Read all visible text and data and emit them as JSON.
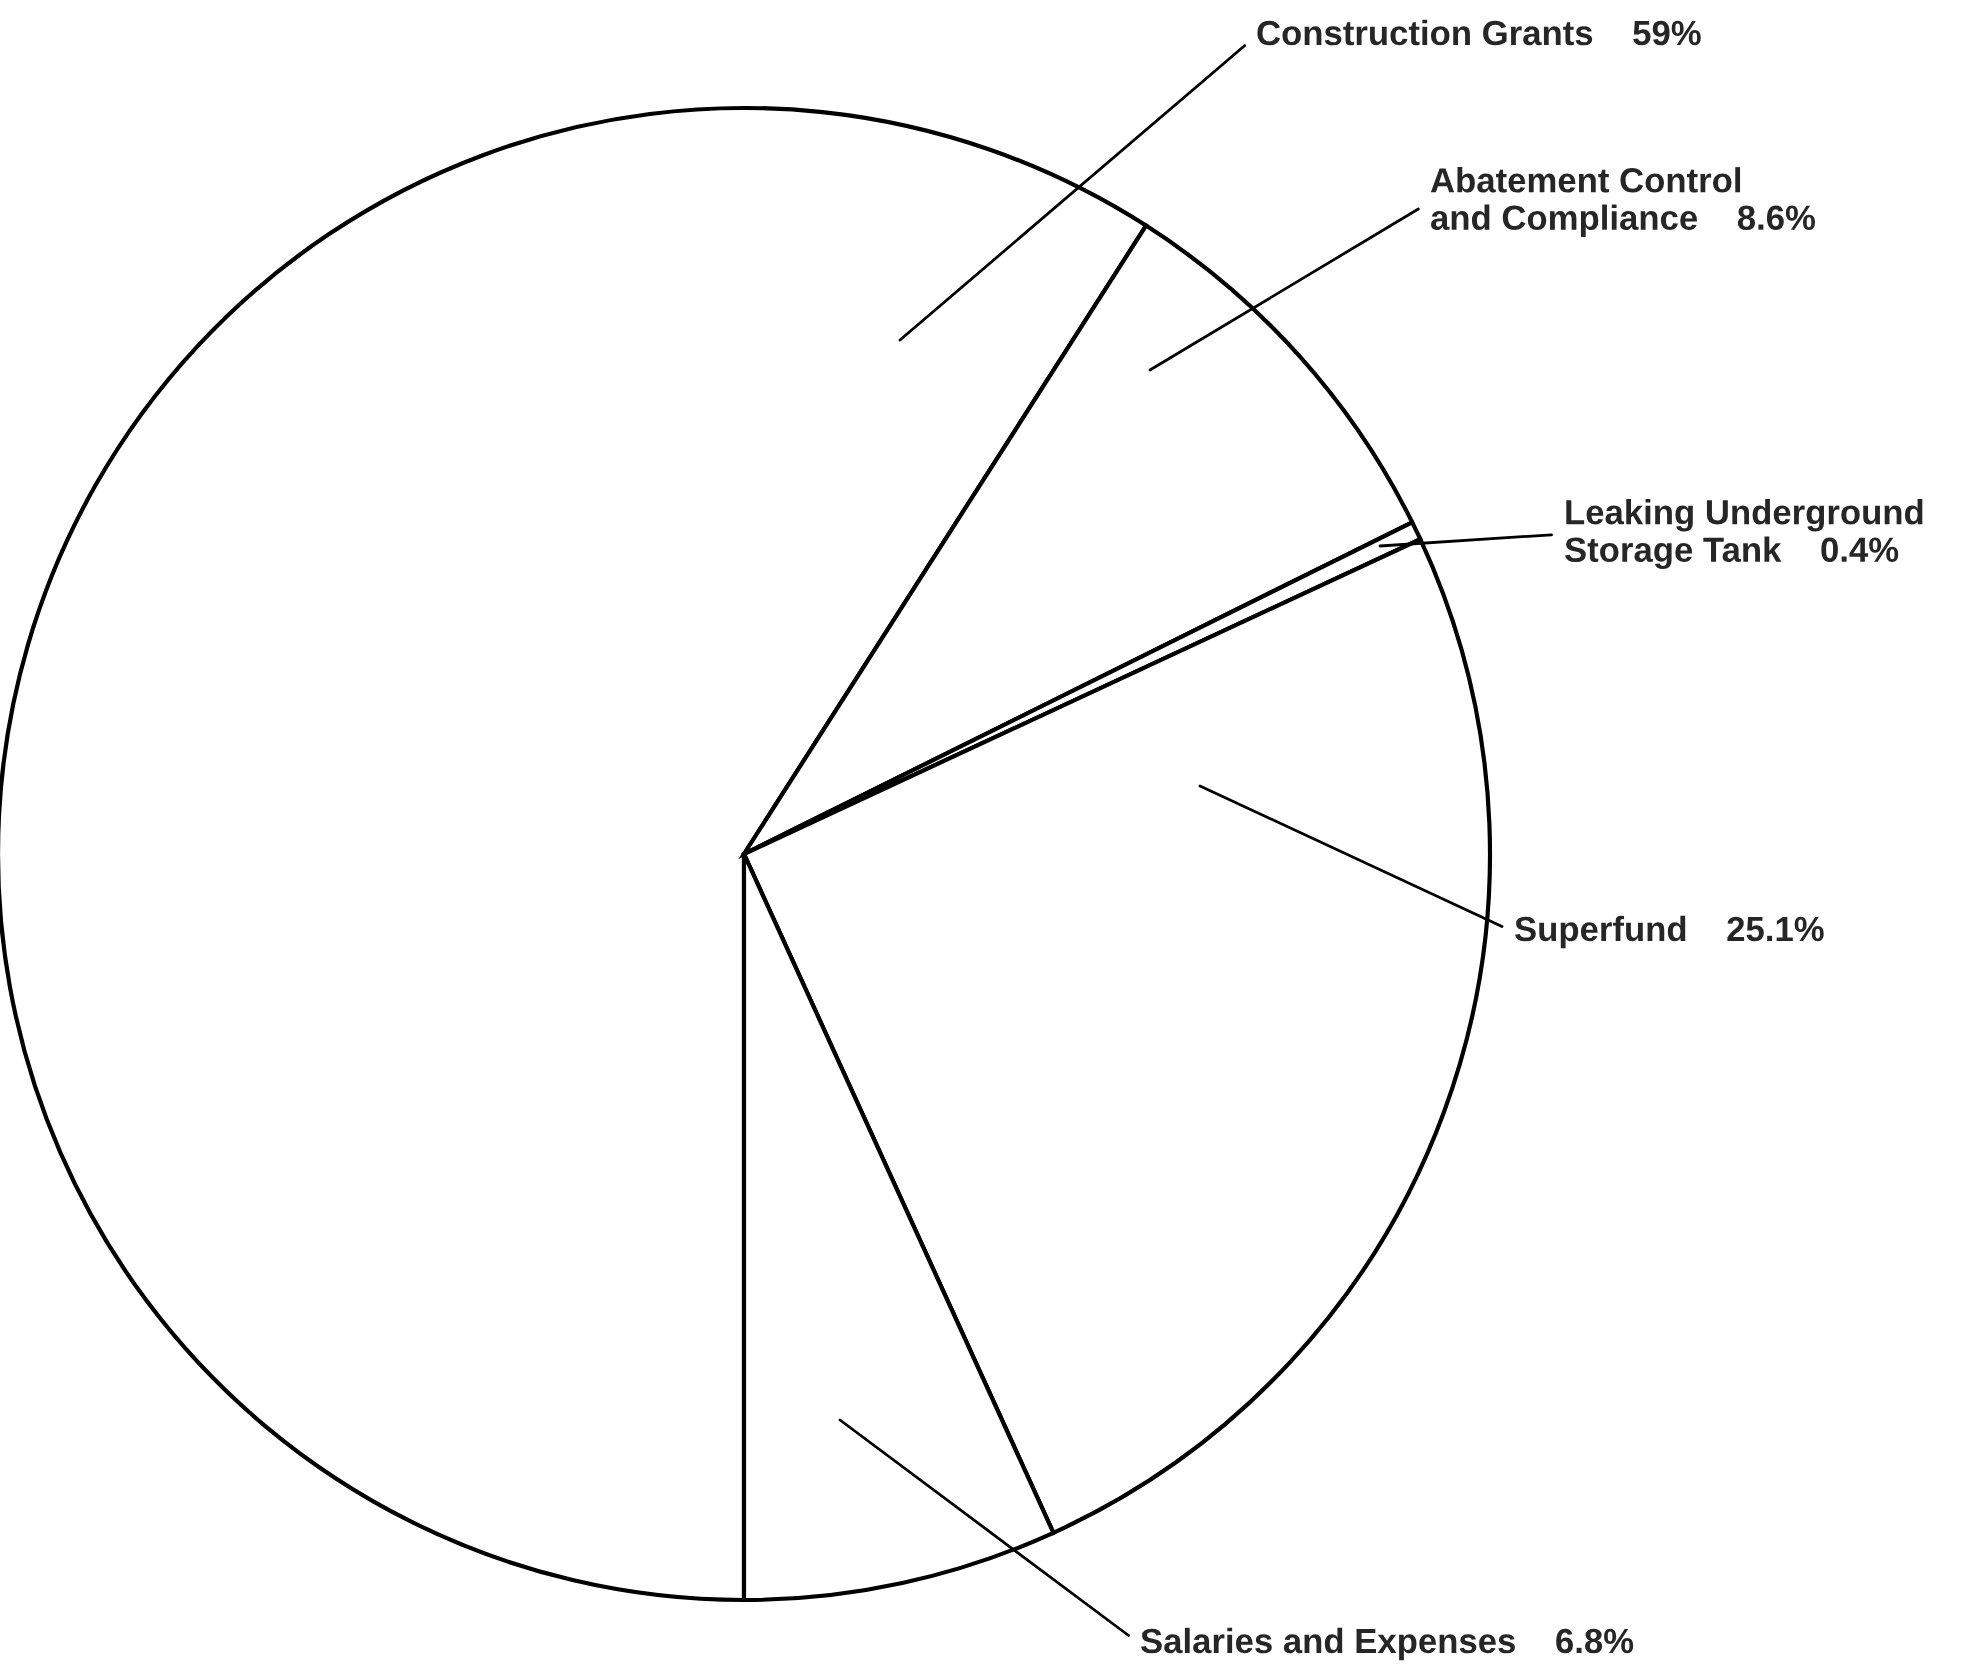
{
  "chart_data": {
    "type": "pie",
    "categories": [
      "Construction Grants",
      "Abatement Control\nand Compliance",
      "Leaking Underground\nStorage Tank",
      "Superfund",
      "Salaries and Expenses"
    ],
    "values": [
      59,
      8.6,
      0.4,
      25.1,
      6.8
    ],
    "value_labels": [
      "59%",
      "8.6%",
      "0.4%",
      "25.1%",
      "6.8%"
    ],
    "colors": [
      "#ffffff",
      "#ffffff",
      "#ffffff",
      "#ffffff",
      "#ffffff"
    ]
  }
}
